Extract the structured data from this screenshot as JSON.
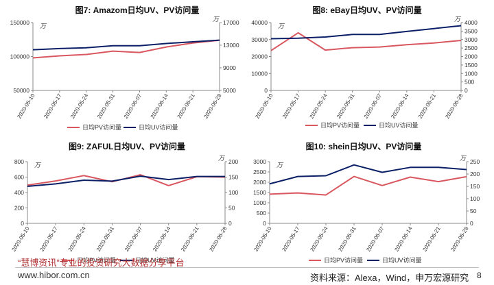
{
  "colors": {
    "pv": "#d9575f",
    "uv": "#0a1f66",
    "axis": "#888888",
    "text": "#333333",
    "title": "#111111"
  },
  "footer": {
    "watermark": "“慧博资讯”专业的投资研究大数据分享平台",
    "watermark_sub": "www.hibor.com.cn",
    "source": "资料来源：Alexa，Wind，申万宏源研究",
    "page_number": "8"
  },
  "chart_data": [
    {
      "type": "line",
      "title": "图7:  Amazom日均UV、PV访问量",
      "left_unit": "万",
      "right_unit": "万",
      "x": [
        "2020-05-10",
        "2020-05-17",
        "2020-05-24",
        "2020-05-31",
        "2020-06-07",
        "2020-06-14",
        "2020-06-21",
        "2020-06-28"
      ],
      "y_left": {
        "min": 50000,
        "max": 150000,
        "ticks": [
          "50000",
          "100000",
          "150000"
        ]
      },
      "y_right": {
        "min": 5000,
        "max": 17000,
        "ticks": [
          "5000",
          "9000",
          "13000",
          "17000"
        ]
      },
      "series": [
        {
          "name": "日均PV访问量",
          "axis": "left",
          "color": "#d9575f",
          "values": [
            98000,
            101000,
            103000,
            108000,
            106000,
            114000,
            120000,
            124000
          ]
        },
        {
          "name": "日均UV访问量",
          "axis": "right",
          "color": "#0a1f66",
          "values": [
            12200,
            12400,
            12550,
            12900,
            12900,
            13300,
            13600,
            13900
          ]
        }
      ]
    },
    {
      "type": "line",
      "title": "图8:  eBay日均UV、PV访问量",
      "left_unit": "万",
      "right_unit": "万",
      "x": [
        "2020-05-10",
        "2020-05-17",
        "2020-05-24",
        "2020-05-31",
        "2020-06-07",
        "2020-06-14",
        "2020-06-21",
        "2020-06-28"
      ],
      "y_left": {
        "min": 0,
        "max": 40000,
        "ticks": [
          "0",
          "10000",
          "20000",
          "30000",
          "40000"
        ]
      },
      "y_right": {
        "min": 0,
        "max": 4000,
        "ticks": [
          "0",
          "500",
          "1000",
          "1500",
          "2000",
          "2500",
          "3000",
          "3500",
          "4000"
        ]
      },
      "series": [
        {
          "name": "日均PV访问量",
          "axis": "left",
          "color": "#d9575f",
          "values": [
            23500,
            34000,
            23800,
            25200,
            25600,
            27000,
            28000,
            29500
          ]
        },
        {
          "name": "日均UV访问量",
          "axis": "right",
          "color": "#0a1f66",
          "values": [
            3050,
            3080,
            3150,
            3300,
            3300,
            3480,
            3650,
            3820
          ]
        }
      ]
    },
    {
      "type": "line",
      "title": "图9:  ZAFUL日均UV、PV访问量",
      "left_unit": "万",
      "right_unit": "万",
      "x": [
        "2020-05-10",
        "2020-05-17",
        "2020-05-24",
        "2020-05-31",
        "2020-06-07",
        "2020-06-14",
        "2020-06-21",
        "2020-06-28"
      ],
      "y_left": {
        "min": 0,
        "max": 800,
        "ticks": [
          "0",
          "200",
          "400",
          "600",
          "800"
        ]
      },
      "y_right": {
        "min": 0,
        "max": 200,
        "ticks": [
          "0",
          "50",
          "100",
          "150",
          "200"
        ]
      },
      "series": [
        {
          "name": "日均PV访问量",
          "axis": "left",
          "color": "#d9575f",
          "values": [
            495,
            550,
            620,
            540,
            630,
            490,
            605,
            600
          ]
        },
        {
          "name": "日均UV访问量",
          "axis": "right",
          "color": "#0a1f66",
          "values": [
            120,
            128,
            140,
            137,
            153,
            142,
            152,
            152
          ]
        }
      ]
    },
    {
      "type": "line",
      "title": "图10:  shein日均UV、PV访问量",
      "left_unit": "万",
      "right_unit": "万",
      "x": [
        "2020-05-10",
        "2020-05-17",
        "2020-05-24",
        "2020-05-31",
        "2020-06-07",
        "2020-06-14",
        "2020-06-21",
        "2020-06-28"
      ],
      "y_left": {
        "min": 0,
        "max": 3000,
        "ticks": [
          "0",
          "500",
          "1000",
          "1500",
          "2000",
          "2500",
          "3000"
        ]
      },
      "y_right": {
        "min": 0,
        "max": 250,
        "ticks": [
          "0",
          "50",
          "100",
          "150",
          "200",
          "250"
        ]
      },
      "series": [
        {
          "name": "日均PV访问量",
          "axis": "left",
          "color": "#d9575f",
          "values": [
            1420,
            1480,
            1380,
            2280,
            1840,
            2250,
            2030,
            2270
          ]
        },
        {
          "name": "日均UV访问量",
          "axis": "right",
          "color": "#0a1f66",
          "values": [
            160,
            190,
            193,
            237,
            207,
            227,
            227,
            218
          ]
        }
      ]
    }
  ]
}
